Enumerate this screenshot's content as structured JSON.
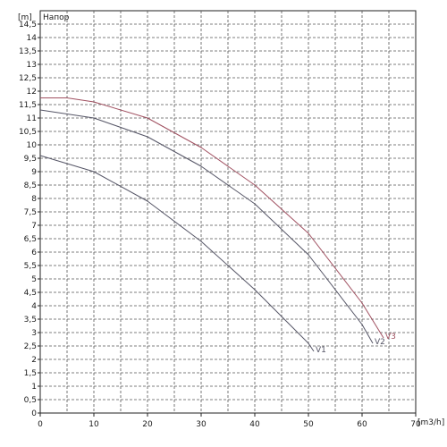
{
  "chart_data": {
    "type": "line",
    "title": "Напор",
    "xlabel": "[m3/h]",
    "ylabel": "[m]",
    "xlim": [
      0,
      70
    ],
    "ylim": [
      0,
      15
    ],
    "x_ticks": [
      "0",
      "10",
      "20",
      "30",
      "40",
      "50",
      "60",
      "70"
    ],
    "y_ticks": [
      "0",
      "0,5",
      "1",
      "1,5",
      "2",
      "2,5",
      "3",
      "3,5",
      "4",
      "4,5",
      "5",
      "5,5",
      "6",
      "6,5",
      "7",
      "7,5",
      "8",
      "8,5",
      "9",
      "9,5",
      "10",
      "10,5",
      "11",
      "11,5",
      "12",
      "12,5",
      "13",
      "13,5",
      "14",
      "14,5"
    ],
    "grid": true,
    "series": [
      {
        "name": "V1",
        "color": "#555566",
        "x": [
          0,
          10,
          20,
          30,
          40,
          50,
          51
        ],
        "y": [
          9.6,
          9.0,
          7.9,
          6.4,
          4.6,
          2.6,
          2.3
        ]
      },
      {
        "name": "V2",
        "color": "#555566",
        "x": [
          0,
          10,
          20,
          30,
          40,
          50,
          60,
          62
        ],
        "y": [
          11.3,
          11.0,
          10.3,
          9.2,
          7.8,
          5.9,
          3.3,
          2.6
        ]
      },
      {
        "name": "V3",
        "color": "#a05060",
        "x": [
          0,
          5,
          10,
          20,
          30,
          40,
          50,
          60,
          64
        ],
        "y": [
          11.75,
          11.75,
          11.6,
          11.0,
          9.9,
          8.5,
          6.7,
          4.1,
          2.8
        ]
      }
    ]
  }
}
